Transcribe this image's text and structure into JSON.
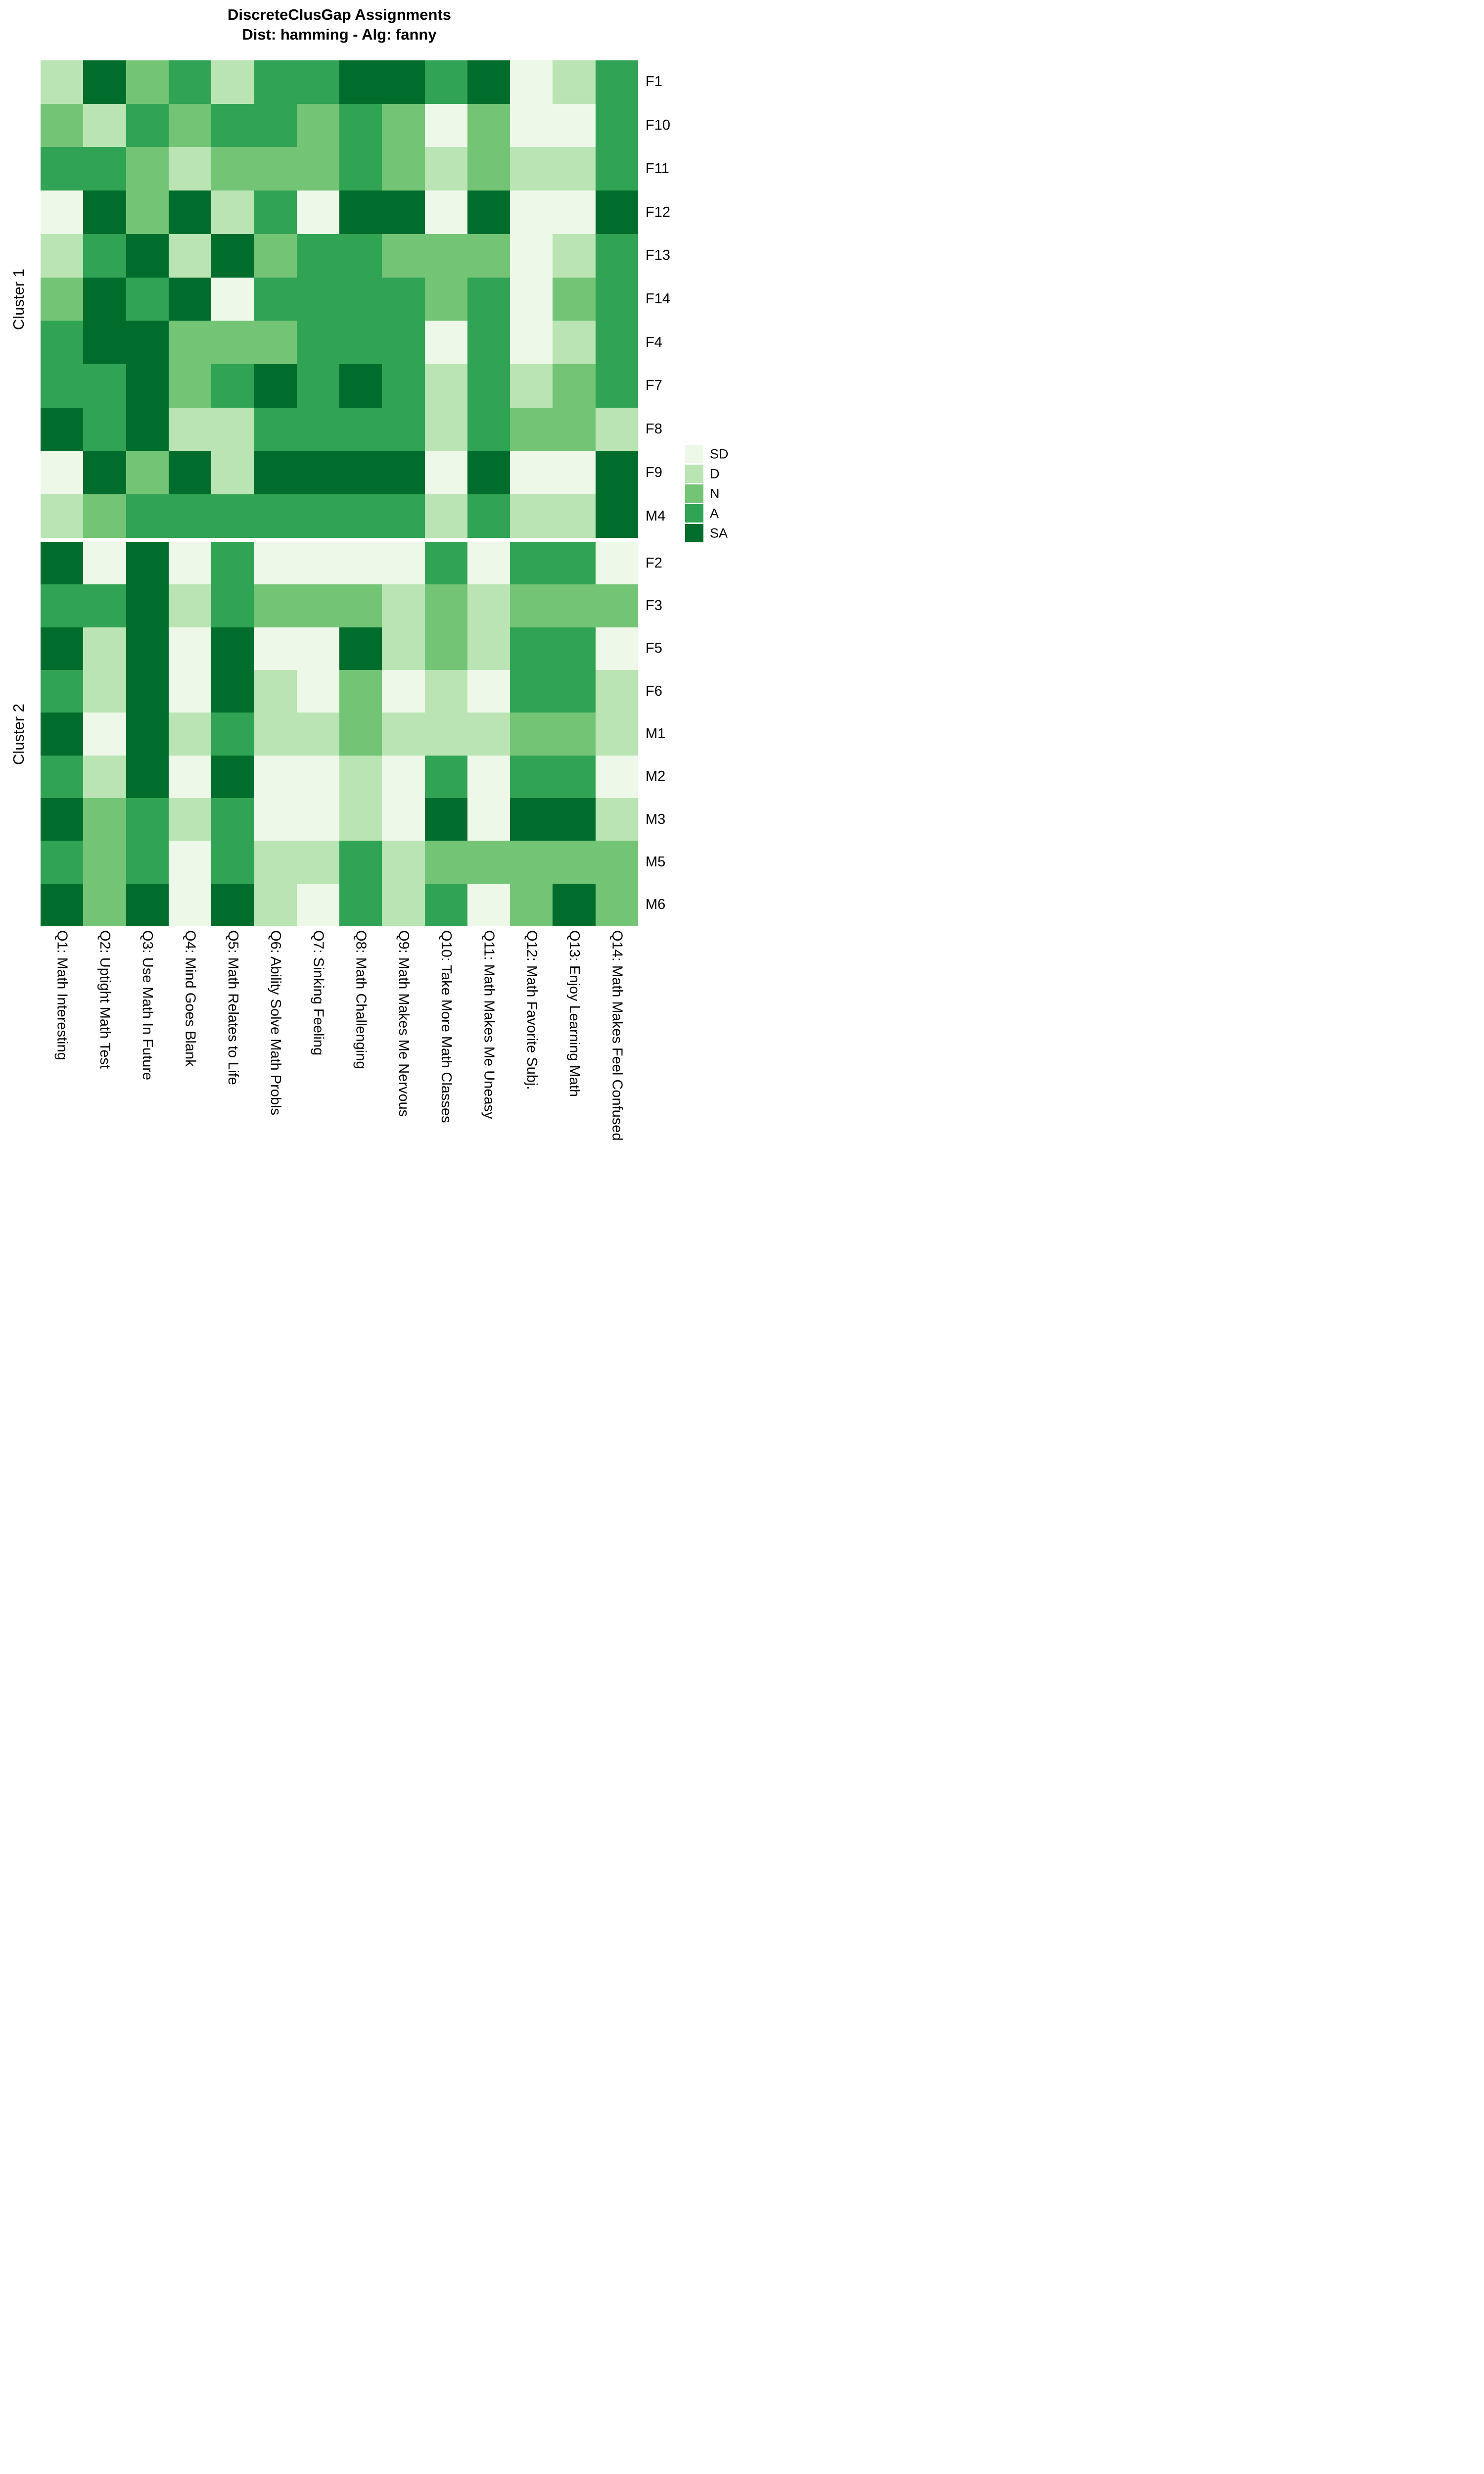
{
  "title": "DiscreteClusGap Assignments",
  "subtitle": "Dist: hamming - Alg: fanny",
  "chart_data": {
    "type": "heatmap",
    "title": "DiscreteClusGap Assignments",
    "subtitle": "Dist: hamming - Alg: fanny",
    "x_labels": [
      "Q1: Math Interesting",
      "Q2: Uptight Math Test",
      "Q3: Use Math In Future",
      "Q4: Mind Goes Blank",
      "Q5: Math Relates to Life",
      "Q6: Ability Solve Math Probls",
      "Q7: Sinking Feeling",
      "Q8: Math Challenging",
      "Q9: Math Makes Me Nervous",
      "Q10: Take More Math Classes",
      "Q11: Math Makes Me Uneasy",
      "Q12: Math Favorite Subj.",
      "Q13: Enjoy Learning Math",
      "Q14: Math Makes Feel Confused"
    ],
    "value_levels": [
      "SD",
      "D",
      "N",
      "A",
      "SA"
    ],
    "level_colors": {
      "SD": "#edf8e9",
      "D": "#bae4b3",
      "N": "#74c476",
      "A": "#31a354",
      "SA": "#006d2c"
    },
    "legend_labels": [
      "SD",
      "D",
      "N",
      "A",
      "SA"
    ],
    "legend_position": "right",
    "clusters": [
      {
        "name": "Cluster 1",
        "rows": [
          {
            "id": "F1",
            "values": [
              "D",
              "SA",
              "N",
              "A",
              "D",
              "A",
              "A",
              "SA",
              "SA",
              "A",
              "SA",
              "SD",
              "D",
              "A"
            ]
          },
          {
            "id": "F10",
            "values": [
              "N",
              "D",
              "A",
              "N",
              "A",
              "A",
              "N",
              "A",
              "N",
              "SD",
              "N",
              "SD",
              "SD",
              "A"
            ]
          },
          {
            "id": "F11",
            "values": [
              "A",
              "A",
              "N",
              "D",
              "N",
              "N",
              "N",
              "A",
              "N",
              "D",
              "N",
              "D",
              "D",
              "A"
            ]
          },
          {
            "id": "F12",
            "values": [
              "SD",
              "SA",
              "N",
              "SA",
              "D",
              "A",
              "SD",
              "SA",
              "SA",
              "SD",
              "SA",
              "SD",
              "SD",
              "SA"
            ]
          },
          {
            "id": "F13",
            "values": [
              "D",
              "A",
              "SA",
              "D",
              "SA",
              "N",
              "A",
              "A",
              "N",
              "N",
              "N",
              "SD",
              "D",
              "A"
            ]
          },
          {
            "id": "F14",
            "values": [
              "N",
              "SA",
              "A",
              "SA",
              "SD",
              "A",
              "A",
              "A",
              "A",
              "N",
              "A",
              "SD",
              "N",
              "A"
            ]
          },
          {
            "id": "F4",
            "values": [
              "A",
              "SA",
              "SA",
              "N",
              "N",
              "N",
              "A",
              "A",
              "A",
              "SD",
              "A",
              "SD",
              "D",
              "A"
            ]
          },
          {
            "id": "F7",
            "values": [
              "A",
              "A",
              "SA",
              "N",
              "A",
              "SA",
              "A",
              "SA",
              "A",
              "D",
              "A",
              "D",
              "N",
              "A"
            ]
          },
          {
            "id": "F8",
            "values": [
              "SA",
              "A",
              "SA",
              "D",
              "D",
              "A",
              "A",
              "A",
              "A",
              "D",
              "A",
              "N",
              "N",
              "D"
            ]
          },
          {
            "id": "F9",
            "values": [
              "SD",
              "SA",
              "N",
              "SA",
              "D",
              "SA",
              "SA",
              "SA",
              "SA",
              "SD",
              "SA",
              "SD",
              "SD",
              "SA"
            ]
          },
          {
            "id": "M4",
            "values": [
              "D",
              "N",
              "A",
              "A",
              "A",
              "A",
              "A",
              "A",
              "A",
              "D",
              "A",
              "D",
              "D",
              "SA"
            ]
          }
        ]
      },
      {
        "name": "Cluster 2",
        "rows": [
          {
            "id": "F2",
            "values": [
              "SA",
              "SD",
              "SA",
              "SD",
              "A",
              "SD",
              "SD",
              "SD",
              "SD",
              "A",
              "SD",
              "A",
              "A",
              "SD"
            ]
          },
          {
            "id": "F3",
            "values": [
              "A",
              "A",
              "SA",
              "D",
              "A",
              "N",
              "N",
              "N",
              "D",
              "N",
              "D",
              "N",
              "N",
              "N"
            ]
          },
          {
            "id": "F5",
            "values": [
              "SA",
              "D",
              "SA",
              "SD",
              "SA",
              "SD",
              "SD",
              "SA",
              "D",
              "N",
              "D",
              "A",
              "A",
              "SD"
            ]
          },
          {
            "id": "F6",
            "values": [
              "A",
              "D",
              "SA",
              "SD",
              "SA",
              "D",
              "SD",
              "N",
              "SD",
              "D",
              "SD",
              "A",
              "A",
              "D"
            ]
          },
          {
            "id": "M1",
            "values": [
              "SA",
              "SD",
              "SA",
              "D",
              "A",
              "D",
              "D",
              "N",
              "D",
              "D",
              "D",
              "N",
              "N",
              "D"
            ]
          },
          {
            "id": "M2",
            "values": [
              "A",
              "D",
              "SA",
              "SD",
              "SA",
              "SD",
              "SD",
              "D",
              "SD",
              "A",
              "SD",
              "A",
              "A",
              "SD"
            ]
          },
          {
            "id": "M3",
            "values": [
              "SA",
              "N",
              "A",
              "D",
              "A",
              "SD",
              "SD",
              "D",
              "SD",
              "SA",
              "SD",
              "SA",
              "SA",
              "D"
            ]
          },
          {
            "id": "M5",
            "values": [
              "A",
              "N",
              "A",
              "SD",
              "A",
              "D",
              "D",
              "A",
              "D",
              "N",
              "N",
              "N",
              "N",
              "N"
            ]
          },
          {
            "id": "M6",
            "values": [
              "SA",
              "N",
              "SA",
              "SD",
              "SA",
              "D",
              "SD",
              "A",
              "D",
              "A",
              "SD",
              "N",
              "SA",
              "N"
            ]
          }
        ]
      }
    ]
  }
}
